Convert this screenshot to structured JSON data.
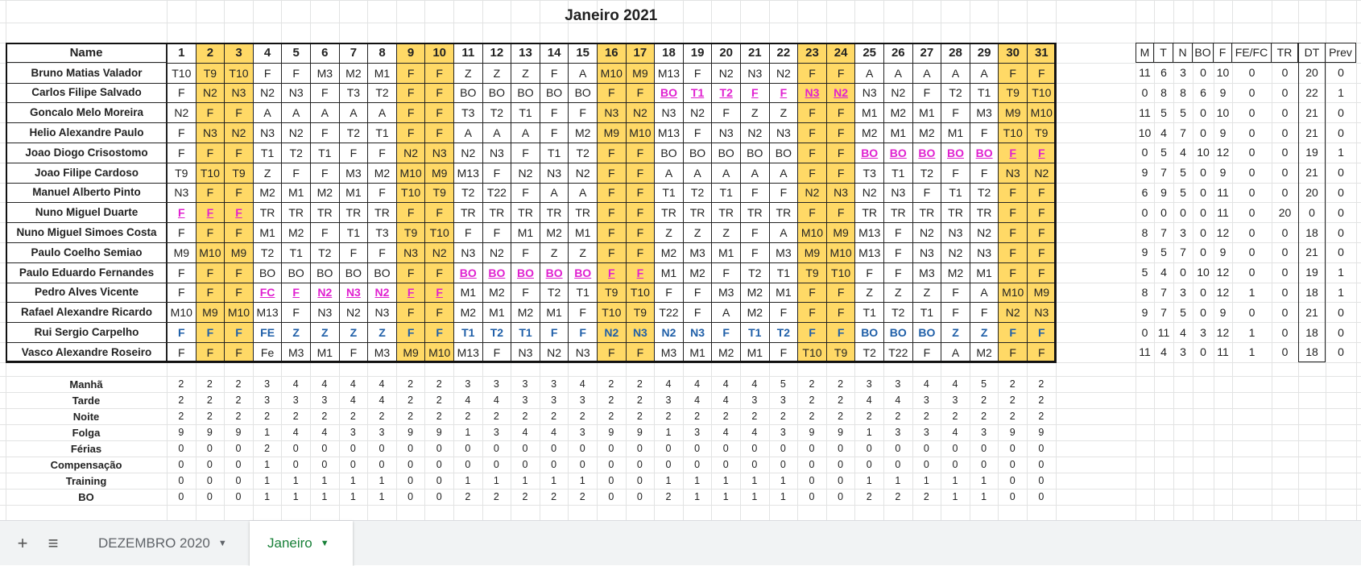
{
  "sheet": {
    "title": "Janeiro 2021",
    "name_header": "Name",
    "days": [
      "1",
      "2",
      "3",
      "4",
      "5",
      "6",
      "7",
      "8",
      "9",
      "10",
      "11",
      "12",
      "13",
      "14",
      "15",
      "16",
      "17",
      "18",
      "19",
      "20",
      "21",
      "22",
      "23",
      "24",
      "25",
      "26",
      "27",
      "28",
      "29",
      "30",
      "31"
    ],
    "weekend_days": [
      2,
      3,
      9,
      10,
      16,
      17,
      23,
      24,
      30,
      31
    ],
    "colors": {
      "weekend": "#ffd966",
      "pink": "#e020d0",
      "blue": "#1f5fa8",
      "active_tab": "#188038"
    },
    "rows": [
      {
        "name": "Bruno Matias Valador",
        "cells": [
          "T10",
          "T9",
          "T10",
          "F",
          "F",
          "M3",
          "M2",
          "M1",
          "F",
          "F",
          "Z",
          "Z",
          "Z",
          "F",
          "A",
          "M10",
          "M9",
          "M13",
          "F",
          "N2",
          "N3",
          "N2",
          "F",
          "F",
          "A",
          "A",
          "A",
          "A",
          "A",
          "F",
          "F"
        ]
      },
      {
        "name": "Carlos Filipe Salvado",
        "cells": [
          "F",
          "N2",
          "N3",
          "N2",
          "N3",
          "F",
          "T3",
          "T2",
          "F",
          "F",
          "BO",
          "BO",
          "BO",
          "BO",
          "BO",
          "F",
          "F",
          "BO",
          "T1",
          "T2",
          "F",
          "F",
          "N3",
          "N2",
          "N3",
          "N2",
          "F",
          "T2",
          "T1",
          "T9",
          "T10"
        ],
        "pink": [
          17,
          18,
          19,
          20,
          21,
          22,
          23
        ]
      },
      {
        "name": "Goncalo Melo Moreira",
        "cells": [
          "N2",
          "F",
          "F",
          "A",
          "A",
          "A",
          "A",
          "A",
          "F",
          "F",
          "T3",
          "T2",
          "T1",
          "F",
          "F",
          "N3",
          "N2",
          "N3",
          "N2",
          "F",
          "Z",
          "Z",
          "F",
          "F",
          "M1",
          "M2",
          "M1",
          "F",
          "M3",
          "M9",
          "M10"
        ]
      },
      {
        "name": "Helio Alexandre Paulo",
        "cells": [
          "F",
          "N3",
          "N2",
          "N3",
          "N2",
          "F",
          "T2",
          "T1",
          "F",
          "F",
          "A",
          "A",
          "A",
          "F",
          "M2",
          "M9",
          "M10",
          "M13",
          "F",
          "N3",
          "N2",
          "N3",
          "F",
          "F",
          "M2",
          "M1",
          "M2",
          "M1",
          "F",
          "T10",
          "T9"
        ]
      },
      {
        "name": "Joao Diogo Crisostomo",
        "cells": [
          "F",
          "F",
          "F",
          "T1",
          "T2",
          "T1",
          "F",
          "F",
          "N2",
          "N3",
          "N2",
          "N3",
          "F",
          "T1",
          "T2",
          "F",
          "F",
          "BO",
          "BO",
          "BO",
          "BO",
          "BO",
          "F",
          "F",
          "BO",
          "BO",
          "BO",
          "BO",
          "BO",
          "F",
          "F"
        ],
        "pink": [
          24,
          25,
          26,
          27,
          28,
          29,
          30
        ]
      },
      {
        "name": "Joao Filipe Cardoso",
        "cells": [
          "T9",
          "T10",
          "T9",
          "Z",
          "F",
          "F",
          "M3",
          "M2",
          "M10",
          "M9",
          "M13",
          "F",
          "N2",
          "N3",
          "N2",
          "F",
          "F",
          "A",
          "A",
          "A",
          "A",
          "A",
          "F",
          "F",
          "T3",
          "T1",
          "T2",
          "F",
          "F",
          "N3",
          "N2"
        ]
      },
      {
        "name": "Manuel Alberto Pinto",
        "cells": [
          "N3",
          "F",
          "F",
          "M2",
          "M1",
          "M2",
          "M1",
          "F",
          "T10",
          "T9",
          "T2",
          "T22",
          "F",
          "A",
          "A",
          "F",
          "F",
          "T1",
          "T2",
          "T1",
          "F",
          "F",
          "N2",
          "N3",
          "N2",
          "N3",
          "F",
          "T1",
          "T2",
          "F",
          "F"
        ]
      },
      {
        "name": "Nuno Miguel Duarte",
        "cells": [
          "F",
          "F",
          "F",
          "TR",
          "TR",
          "TR",
          "TR",
          "TR",
          "F",
          "F",
          "TR",
          "TR",
          "TR",
          "TR",
          "TR",
          "F",
          "F",
          "TR",
          "TR",
          "TR",
          "TR",
          "TR",
          "F",
          "F",
          "TR",
          "TR",
          "TR",
          "TR",
          "TR",
          "F",
          "F"
        ],
        "pink": [
          0,
          1,
          2
        ]
      },
      {
        "name": "Nuno Miguel Simoes Costa",
        "cells": [
          "F",
          "F",
          "F",
          "M1",
          "M2",
          "F",
          "T1",
          "T3",
          "T9",
          "T10",
          "F",
          "F",
          "M1",
          "M2",
          "M1",
          "F",
          "F",
          "Z",
          "Z",
          "Z",
          "F",
          "A",
          "M10",
          "M9",
          "M13",
          "F",
          "N2",
          "N3",
          "N2",
          "F",
          "F"
        ]
      },
      {
        "name": "Paulo Coelho Semiao",
        "cells": [
          "M9",
          "M10",
          "M9",
          "T2",
          "T1",
          "T2",
          "F",
          "F",
          "N3",
          "N2",
          "N3",
          "N2",
          "F",
          "Z",
          "Z",
          "F",
          "F",
          "M2",
          "M3",
          "M1",
          "F",
          "M3",
          "M9",
          "M10",
          "M13",
          "F",
          "N3",
          "N2",
          "N3",
          "F",
          "F"
        ]
      },
      {
        "name": "Paulo Eduardo Fernandes",
        "cells": [
          "F",
          "F",
          "F",
          "BO",
          "BO",
          "BO",
          "BO",
          "BO",
          "F",
          "F",
          "BO",
          "BO",
          "BO",
          "BO",
          "BO",
          "F",
          "F",
          "M1",
          "M2",
          "F",
          "T2",
          "T1",
          "T9",
          "T10",
          "F",
          "F",
          "M3",
          "M2",
          "M1",
          "F",
          "F"
        ],
        "pink": [
          10,
          11,
          12,
          13,
          14,
          15,
          16
        ]
      },
      {
        "name": "Pedro Alves Vicente",
        "cells": [
          "F",
          "F",
          "F",
          "FC",
          "F",
          "N2",
          "N3",
          "N2",
          "F",
          "F",
          "M1",
          "M2",
          "F",
          "T2",
          "T1",
          "T9",
          "T10",
          "F",
          "F",
          "M3",
          "M2",
          "M1",
          "F",
          "F",
          "Z",
          "Z",
          "Z",
          "F",
          "A",
          "M10",
          "M9"
        ],
        "pink": [
          3,
          4,
          5,
          6,
          7,
          8,
          9
        ]
      },
      {
        "name": "Rafael Alexandre Ricardo",
        "cells": [
          "M10",
          "M9",
          "M10",
          "M13",
          "F",
          "N3",
          "N2",
          "N3",
          "F",
          "F",
          "M2",
          "M1",
          "M2",
          "M1",
          "F",
          "T10",
          "T9",
          "T22",
          "F",
          "A",
          "M2",
          "F",
          "F",
          "F",
          "T1",
          "T2",
          "T1",
          "F",
          "F",
          "N2",
          "N3"
        ]
      },
      {
        "name": "Rui Sergio Carpelho",
        "cells": [
          "F",
          "F",
          "F",
          "FE",
          "Z",
          "Z",
          "Z",
          "Z",
          "F",
          "F",
          "T1",
          "T2",
          "T1",
          "F",
          "F",
          "N2",
          "N3",
          "N2",
          "N3",
          "F",
          "T1",
          "T2",
          "F",
          "F",
          "BO",
          "BO",
          "BO",
          "Z",
          "Z",
          "F",
          "F"
        ],
        "blue": [
          0,
          1,
          2,
          3,
          4,
          5,
          6,
          7,
          8,
          9,
          10,
          11,
          12,
          13,
          14,
          15,
          16,
          17,
          18,
          19,
          20,
          21,
          22,
          23,
          24,
          25,
          26,
          27,
          28,
          29,
          30
        ]
      },
      {
        "name": "Vasco Alexandre Roseiro",
        "cells": [
          "F",
          "F",
          "F",
          "Fe",
          "M3",
          "M1",
          "F",
          "M3",
          "M9",
          "M10",
          "M13",
          "F",
          "N3",
          "N2",
          "N3",
          "F",
          "F",
          "M3",
          "M1",
          "M2",
          "M1",
          "F",
          "T10",
          "T9",
          "T2",
          "T22",
          "F",
          "A",
          "M2",
          "F",
          "F"
        ]
      }
    ],
    "stats_headers": [
      "M",
      "T",
      "N",
      "BO",
      "F",
      "FE/FC",
      "TR",
      "DT",
      "Prev"
    ],
    "stats": [
      [
        "11",
        "6",
        "3",
        "0",
        "10",
        "0",
        "0",
        "20",
        "0"
      ],
      [
        "0",
        "8",
        "8",
        "6",
        "9",
        "0",
        "0",
        "22",
        "1"
      ],
      [
        "11",
        "5",
        "5",
        "0",
        "10",
        "0",
        "0",
        "21",
        "0"
      ],
      [
        "10",
        "4",
        "7",
        "0",
        "9",
        "0",
        "0",
        "21",
        "0"
      ],
      [
        "0",
        "5",
        "4",
        "10",
        "12",
        "0",
        "0",
        "19",
        "1"
      ],
      [
        "9",
        "7",
        "5",
        "0",
        "9",
        "0",
        "0",
        "21",
        "0"
      ],
      [
        "6",
        "9",
        "5",
        "0",
        "11",
        "0",
        "0",
        "20",
        "0"
      ],
      [
        "0",
        "0",
        "0",
        "0",
        "11",
        "0",
        "20",
        "0",
        "0"
      ],
      [
        "8",
        "7",
        "3",
        "0",
        "12",
        "0",
        "0",
        "18",
        "0"
      ],
      [
        "9",
        "5",
        "7",
        "0",
        "9",
        "0",
        "0",
        "21",
        "0"
      ],
      [
        "5",
        "4",
        "0",
        "10",
        "12",
        "0",
        "0",
        "19",
        "1"
      ],
      [
        "8",
        "7",
        "3",
        "0",
        "12",
        "1",
        "0",
        "18",
        "1"
      ],
      [
        "9",
        "7",
        "5",
        "0",
        "9",
        "0",
        "0",
        "21",
        "0"
      ],
      [
        "0",
        "11",
        "4",
        "3",
        "12",
        "1",
        "0",
        "18",
        "0"
      ],
      [
        "11",
        "4",
        "3",
        "0",
        "11",
        "1",
        "0",
        "18",
        "0"
      ]
    ],
    "summary": [
      {
        "label": "Manhã",
        "values": [
          "2",
          "2",
          "2",
          "3",
          "4",
          "4",
          "4",
          "4",
          "2",
          "2",
          "3",
          "3",
          "3",
          "3",
          "4",
          "2",
          "2",
          "4",
          "4",
          "4",
          "4",
          "5",
          "2",
          "2",
          "3",
          "3",
          "4",
          "4",
          "5",
          "2",
          "2"
        ]
      },
      {
        "label": "Tarde",
        "values": [
          "2",
          "2",
          "2",
          "3",
          "3",
          "3",
          "4",
          "4",
          "2",
          "2",
          "4",
          "4",
          "3",
          "3",
          "3",
          "2",
          "2",
          "3",
          "4",
          "4",
          "3",
          "3",
          "2",
          "2",
          "4",
          "4",
          "3",
          "3",
          "2",
          "2",
          "2"
        ]
      },
      {
        "label": "Noite",
        "values": [
          "2",
          "2",
          "2",
          "2",
          "2",
          "2",
          "2",
          "2",
          "2",
          "2",
          "2",
          "2",
          "2",
          "2",
          "2",
          "2",
          "2",
          "2",
          "2",
          "2",
          "2",
          "2",
          "2",
          "2",
          "2",
          "2",
          "2",
          "2",
          "2",
          "2",
          "2"
        ]
      },
      {
        "label": "Folga",
        "values": [
          "9",
          "9",
          "9",
          "1",
          "4",
          "4",
          "3",
          "3",
          "9",
          "9",
          "1",
          "3",
          "4",
          "4",
          "3",
          "9",
          "9",
          "1",
          "3",
          "4",
          "4",
          "3",
          "9",
          "9",
          "1",
          "3",
          "3",
          "4",
          "3",
          "9",
          "9"
        ]
      },
      {
        "label": "Férias",
        "values": [
          "0",
          "0",
          "0",
          "2",
          "0",
          "0",
          "0",
          "0",
          "0",
          "0",
          "0",
          "0",
          "0",
          "0",
          "0",
          "0",
          "0",
          "0",
          "0",
          "0",
          "0",
          "0",
          "0",
          "0",
          "0",
          "0",
          "0",
          "0",
          "0",
          "0",
          "0"
        ]
      },
      {
        "label": "Compensação",
        "values": [
          "0",
          "0",
          "0",
          "1",
          "0",
          "0",
          "0",
          "0",
          "0",
          "0",
          "0",
          "0",
          "0",
          "0",
          "0",
          "0",
          "0",
          "0",
          "0",
          "0",
          "0",
          "0",
          "0",
          "0",
          "0",
          "0",
          "0",
          "0",
          "0",
          "0",
          "0"
        ]
      },
      {
        "label": "Training",
        "values": [
          "0",
          "0",
          "0",
          "1",
          "1",
          "1",
          "1",
          "1",
          "0",
          "0",
          "1",
          "1",
          "1",
          "1",
          "1",
          "0",
          "0",
          "1",
          "1",
          "1",
          "1",
          "1",
          "0",
          "0",
          "1",
          "1",
          "1",
          "1",
          "1",
          "0",
          "0"
        ]
      },
      {
        "label": "BO",
        "values": [
          "0",
          "0",
          "0",
          "1",
          "1",
          "1",
          "1",
          "1",
          "0",
          "0",
          "2",
          "2",
          "2",
          "2",
          "2",
          "0",
          "0",
          "2",
          "1",
          "1",
          "1",
          "1",
          "0",
          "0",
          "2",
          "2",
          "2",
          "1",
          "1",
          "0",
          "0"
        ]
      }
    ]
  },
  "tabbar": {
    "add_icon": "plus-icon",
    "list_icon": "list-icon",
    "tabs": [
      {
        "label": "DEZEMBRO 2020",
        "active": false
      },
      {
        "label": "Janeiro",
        "active": true
      }
    ]
  }
}
